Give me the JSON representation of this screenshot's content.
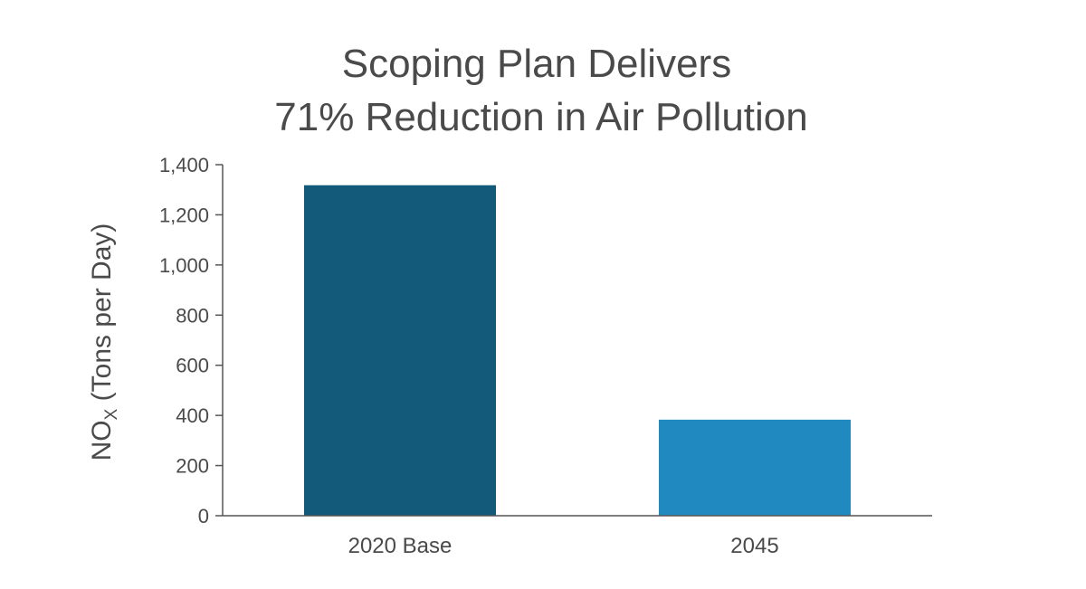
{
  "chart_data": {
    "type": "bar",
    "title_lines": [
      "Scoping Plan Delivers",
      "71% Reduction in Air Pollution"
    ],
    "ylabel": {
      "main": "NO",
      "subscript": "X",
      "rest": " (Tons per Day)"
    },
    "xlabel": "",
    "categories": [
      "2020 Base",
      "2045"
    ],
    "values": [
      1318,
      383
    ],
    "bar_colors": [
      "#12597a",
      "#208ac0"
    ],
    "ylim": [
      0,
      1400
    ],
    "yticks": [
      0,
      200,
      400,
      600,
      800,
      1000,
      1200,
      1400
    ],
    "ytick_labels": [
      "0",
      "200",
      "400",
      "600",
      "800",
      "1,000",
      "1,200",
      "1,400"
    ],
    "grid": false,
    "legend": "none"
  },
  "colors": {
    "text": "#4a4a4a",
    "axis": "#555555"
  }
}
